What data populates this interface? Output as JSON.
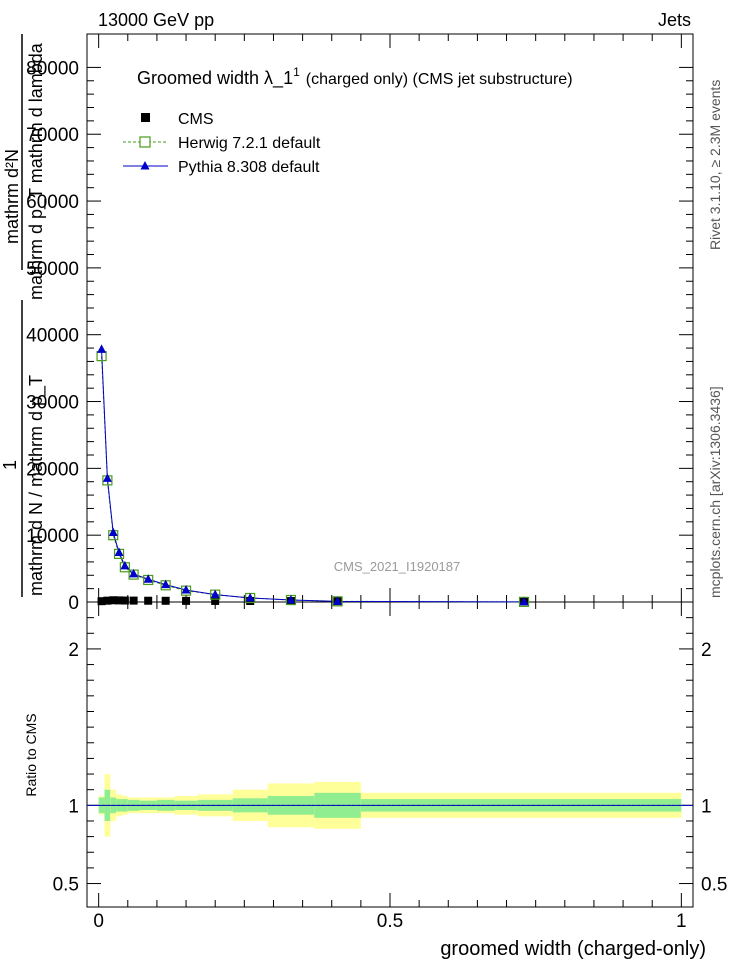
{
  "header": {
    "left": "13000 GeV pp",
    "right": "Jets"
  },
  "side": {
    "rivet": "Rivet 3.1.10, ≥ 2.3M events",
    "mcplots": "mcplots.cern.ch [arXiv:1306.3436]"
  },
  "watermark": "CMS_2021_I1920187",
  "ylabel_main": {
    "line1": "mathrm d²N",
    "line2": "mathrm d p_T mathrm d lambda",
    "line3": "1",
    "line4": "mathrm d N / mathrm d p_T"
  },
  "ylabel_ratio": "Ratio to CMS",
  "xlabel": "groomed width (charged-only)",
  "chart_data": [
    {
      "type": "line",
      "title": "Groomed width  λ_1¹ (charged only) (CMS jet substructure)",
      "title_main": "Groomed width  λ_1",
      "title_sup": "1",
      "title_rest": "(charged only) (CMS jet substructure)",
      "ylim": [
        0,
        85000
      ],
      "xlim": [
        -0.02,
        1.02
      ],
      "ytick_labels": [
        "0",
        "10000",
        "20000",
        "30000",
        "40000",
        "50000",
        "60000",
        "70000",
        "80000"
      ],
      "ytick_values": [
        0,
        10000,
        20000,
        30000,
        40000,
        50000,
        60000,
        70000,
        80000
      ],
      "legend": [
        {
          "name": "CMS",
          "marker": "square-filled",
          "color": "#000000"
        },
        {
          "name": "Herwig 7.2.1 default",
          "marker": "square-open",
          "color": "#4a9a1a",
          "dash": true
        },
        {
          "name": "Pythia 8.308 default",
          "marker": "triangle",
          "color": "#0000c8"
        }
      ],
      "series": [
        {
          "name": "CMS",
          "x": [
            0.005,
            0.015,
            0.025,
            0.035,
            0.045,
            0.06,
            0.085,
            0.115,
            0.15,
            0.2,
            0.26,
            0.33,
            0.41,
            0.73
          ],
          "y": [
            120,
            200,
            260,
            240,
            220,
            210,
            190,
            180,
            170,
            160,
            150,
            140,
            130,
            120
          ]
        },
        {
          "name": "Herwig 7.2.1 default",
          "x": [
            0.005,
            0.015,
            0.025,
            0.035,
            0.045,
            0.06,
            0.085,
            0.115,
            0.15,
            0.2,
            0.26,
            0.33,
            0.41,
            0.73
          ],
          "y": [
            36800,
            18200,
            10000,
            7200,
            5200,
            4100,
            3300,
            2500,
            1700,
            1100,
            600,
            300,
            100,
            20
          ]
        },
        {
          "name": "Pythia 8.308 default",
          "x": [
            0.005,
            0.015,
            0.025,
            0.035,
            0.045,
            0.06,
            0.085,
            0.115,
            0.15,
            0.2,
            0.26,
            0.33,
            0.41,
            0.73
          ],
          "y": [
            37800,
            18500,
            10400,
            7400,
            5400,
            4200,
            3400,
            2600,
            1800,
            1100,
            600,
            300,
            100,
            20
          ]
        }
      ]
    },
    {
      "type": "area",
      "ylabel": "Ratio to CMS",
      "xlabel": "groomed width (charged-only)",
      "xlim": [
        -0.02,
        1.02
      ],
      "ylim": [
        0.35,
        2.3
      ],
      "ytick_labels": [
        "0.5",
        "1",
        "2"
      ],
      "ytick_values": [
        0.5,
        1,
        2
      ],
      "xtick_labels": [
        "0",
        "0.5",
        "1"
      ],
      "xtick_values": [
        0,
        0.5,
        1
      ],
      "bin_edges": [
        0,
        0.01,
        0.02,
        0.03,
        0.04,
        0.05,
        0.07,
        0.1,
        0.13,
        0.17,
        0.23,
        0.29,
        0.37,
        0.45,
        1.0
      ],
      "stat_band": [
        0.05,
        0.1,
        0.05,
        0.04,
        0.04,
        0.035,
        0.03,
        0.035,
        0.03,
        0.035,
        0.045,
        0.06,
        0.08,
        0.04
      ],
      "total_band": [
        0.06,
        0.2,
        0.1,
        0.07,
        0.06,
        0.05,
        0.05,
        0.05,
        0.06,
        0.07,
        0.1,
        0.14,
        0.15,
        0.08
      ],
      "colors": {
        "stat": "#90ee90",
        "total": "#ffff99"
      }
    }
  ]
}
